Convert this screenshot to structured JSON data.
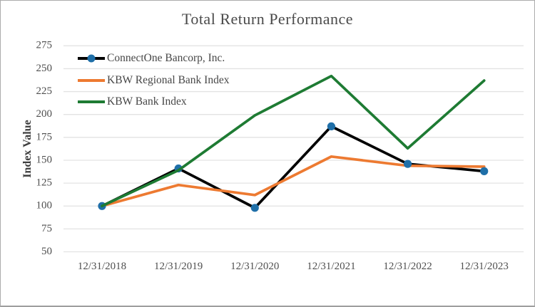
{
  "colors": {
    "background": "#FFFFFF",
    "frame_border": "#ABABAB",
    "gridline": "#E3E3E3",
    "text": "#4A4A4A"
  },
  "chart_data": {
    "type": "line",
    "title": "Total Return Performance",
    "xlabel": "",
    "ylabel": "Index Value",
    "ylim": [
      50,
      275
    ],
    "ytick_step": 25,
    "ytick_labels": [
      "275",
      "250",
      "225",
      "200",
      "175",
      "150",
      "125",
      "100",
      "75",
      "50"
    ],
    "grid": "horizontal-only",
    "legend_position": "inside-top-left",
    "categories": [
      "12/31/2018",
      "12/31/2019",
      "12/31/2020",
      "12/31/2021",
      "12/31/2022",
      "12/31/2023"
    ],
    "series": [
      {
        "name": "ConnectOne Bancorp, Inc.",
        "color": "#000000",
        "z": 1,
        "marker": {
          "shape": "circle",
          "color": "#1F6FA8",
          "z": 3
        },
        "values": [
          100,
          141,
          98,
          187,
          146,
          138
        ]
      },
      {
        "name": "KBW Regional Bank Index",
        "color": "#ED7A31",
        "z": 2,
        "marker": null,
        "values": [
          100,
          123,
          112,
          154,
          144,
          143
        ]
      },
      {
        "name": "KBW Bank Index",
        "color": "#1E7B33",
        "z": 4,
        "marker": null,
        "values": [
          100,
          139,
          199,
          242,
          163,
          237
        ]
      }
    ]
  }
}
